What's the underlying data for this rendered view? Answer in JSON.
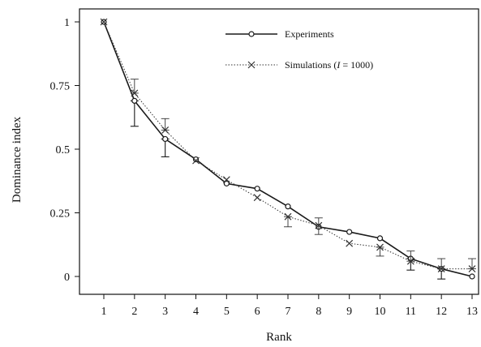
{
  "chart_data": {
    "type": "line",
    "title": "",
    "xlabel": "Rank",
    "ylabel": "Dominance index",
    "xlim": [
      1,
      13
    ],
    "ylim": [
      0,
      1
    ],
    "x": [
      1,
      2,
      3,
      4,
      5,
      6,
      7,
      8,
      9,
      10,
      11,
      12,
      13
    ],
    "x_tick_labels": [
      "1",
      "2",
      "3",
      "4",
      "5",
      "6",
      "7",
      "8",
      "9",
      "10",
      "11",
      "12",
      "13"
    ],
    "y_ticks": [
      0,
      0.25,
      0.5,
      0.75,
      1
    ],
    "y_tick_labels": [
      "0",
      "0.25",
      "0.5",
      "0.75",
      "1"
    ],
    "grid": false,
    "legend_position": "top-right",
    "series": [
      {
        "name": "Experiments",
        "style": "solid",
        "marker": "circle",
        "color": "#1a1a1a",
        "values": [
          1.0,
          0.69,
          0.54,
          0.46,
          0.365,
          0.345,
          0.275,
          0.195,
          0.175,
          0.15,
          0.07,
          0.03,
          0.0
        ],
        "error_bars": [
          {
            "x": 2,
            "low": 0.59,
            "high": 0.69
          },
          {
            "x": 3,
            "low": 0.47,
            "high": 0.54
          },
          {
            "x": 11,
            "low": 0.025,
            "high": 0.07
          },
          {
            "x": 12,
            "low": -0.01,
            "high": 0.03
          }
        ]
      },
      {
        "name_prefix": "Simulations  (",
        "name_italic": "I",
        "name_suffix": " = 1000)",
        "style": "dotted",
        "marker": "x",
        "color": "#333333",
        "values": [
          1.0,
          0.72,
          0.575,
          0.455,
          0.38,
          0.31,
          0.235,
          0.2,
          0.13,
          0.115,
          0.06,
          0.03,
          0.03
        ],
        "error_bars": [
          {
            "x": 2,
            "low": 0.72,
            "high": 0.775
          },
          {
            "x": 3,
            "low": 0.575,
            "high": 0.62
          },
          {
            "x": 7,
            "low": 0.195,
            "high": 0.235
          },
          {
            "x": 8,
            "low": 0.165,
            "high": 0.23
          },
          {
            "x": 10,
            "low": 0.08,
            "high": 0.115
          },
          {
            "x": 11,
            "low": 0.06,
            "high": 0.1
          },
          {
            "x": 12,
            "low": 0.03,
            "high": 0.07
          },
          {
            "x": 13,
            "low": 0.03,
            "high": 0.07
          }
        ]
      }
    ]
  }
}
